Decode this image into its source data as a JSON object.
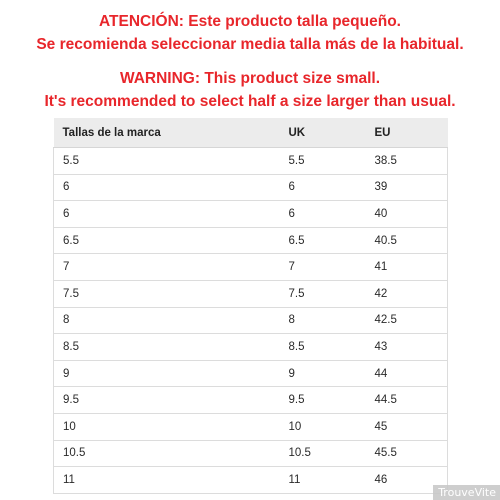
{
  "warning_es": {
    "line1": "ATENCIÓN: Este producto talla pequeño.",
    "line2": "Se recomienda seleccionar media talla más de la habitual."
  },
  "warning_en": {
    "line1": "WARNING: This product size small.",
    "line2": "It's recommended to select half a size larger than usual."
  },
  "table": {
    "headers": [
      "Tallas de la marca",
      "UK",
      "EU"
    ],
    "rows": [
      [
        "5.5",
        "5.5",
        "38.5"
      ],
      [
        "6",
        "6",
        "39"
      ],
      [
        "6",
        "6",
        "40"
      ],
      [
        "6.5",
        "6.5",
        "40.5"
      ],
      [
        "7",
        "7",
        "41"
      ],
      [
        "7.5",
        "7.5",
        "42"
      ],
      [
        "8",
        "8",
        "42.5"
      ],
      [
        "8.5",
        "8.5",
        "43"
      ],
      [
        "9",
        "9",
        "44"
      ],
      [
        "9.5",
        "9.5",
        "44.5"
      ],
      [
        "10",
        "10",
        "45"
      ],
      [
        "10.5",
        "10.5",
        "45.5"
      ],
      [
        "11",
        "11",
        "46"
      ]
    ]
  },
  "watermark": "TrouveVite",
  "colors": {
    "warning": "#e8262b",
    "header_bg": "#ececec"
  }
}
